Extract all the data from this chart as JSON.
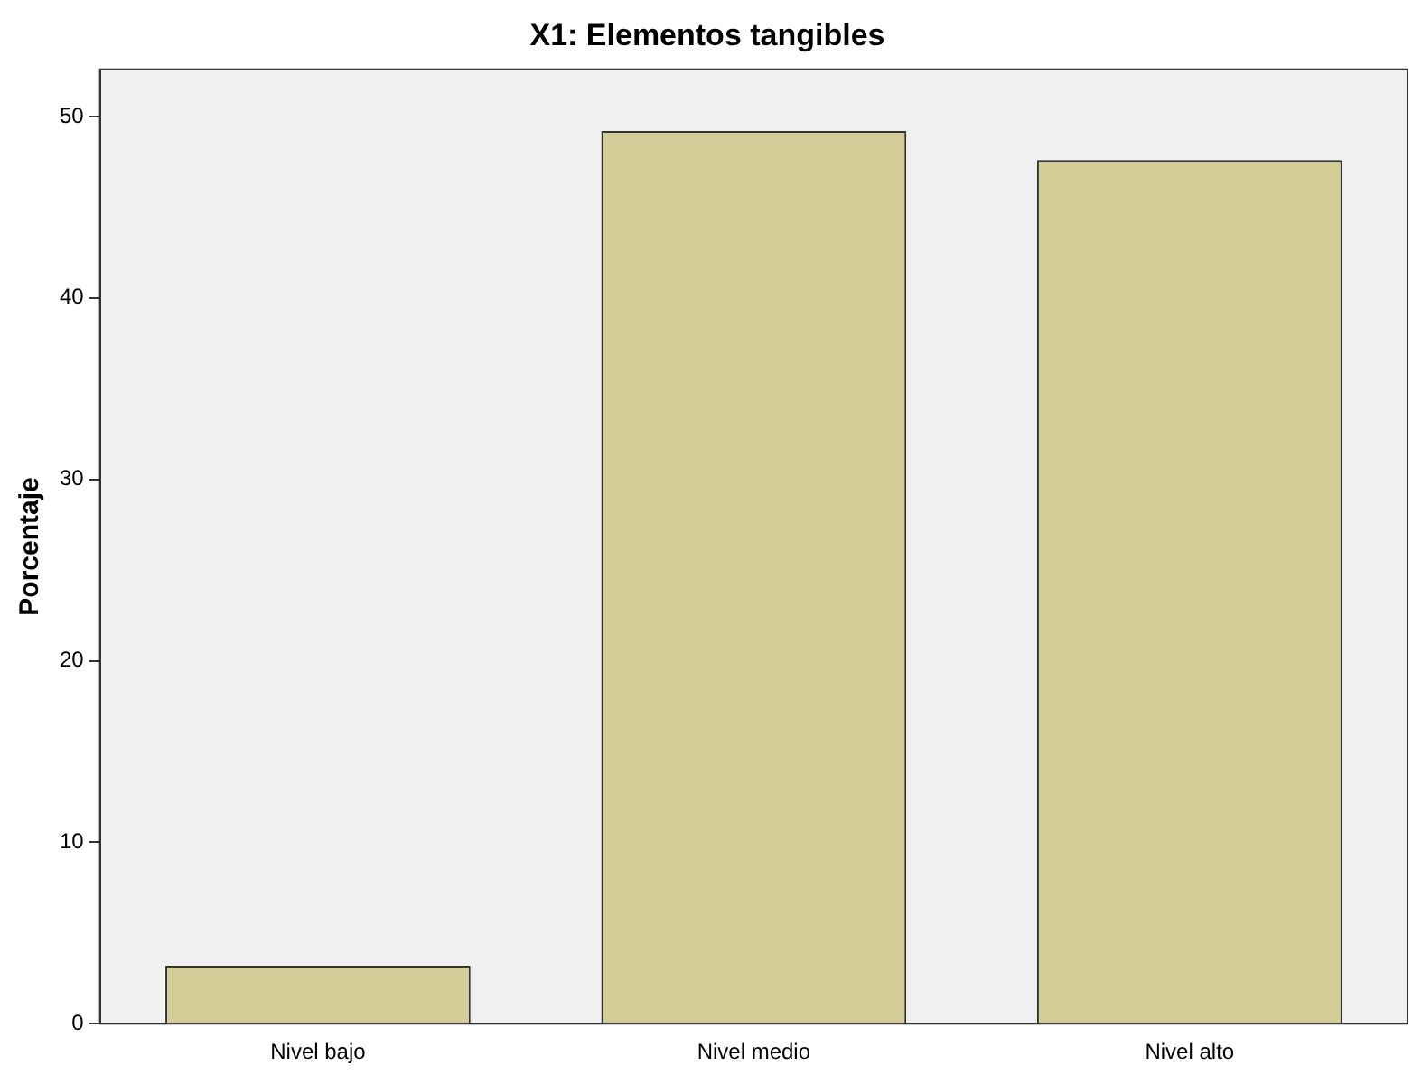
{
  "chart_data": {
    "type": "bar",
    "title": "X1: Elementos tangibles",
    "ylabel": "Porcentaje",
    "categories": [
      "Nivel bajo",
      "Nivel medio",
      "Nivel alto"
    ],
    "values": [
      3.2,
      49.2,
      47.6
    ],
    "color": "#d3ce97",
    "ylim": [
      0,
      52.6
    ],
    "yticks": [
      0,
      10,
      20,
      30,
      40,
      50
    ],
    "grid": false,
    "legend": false
  }
}
